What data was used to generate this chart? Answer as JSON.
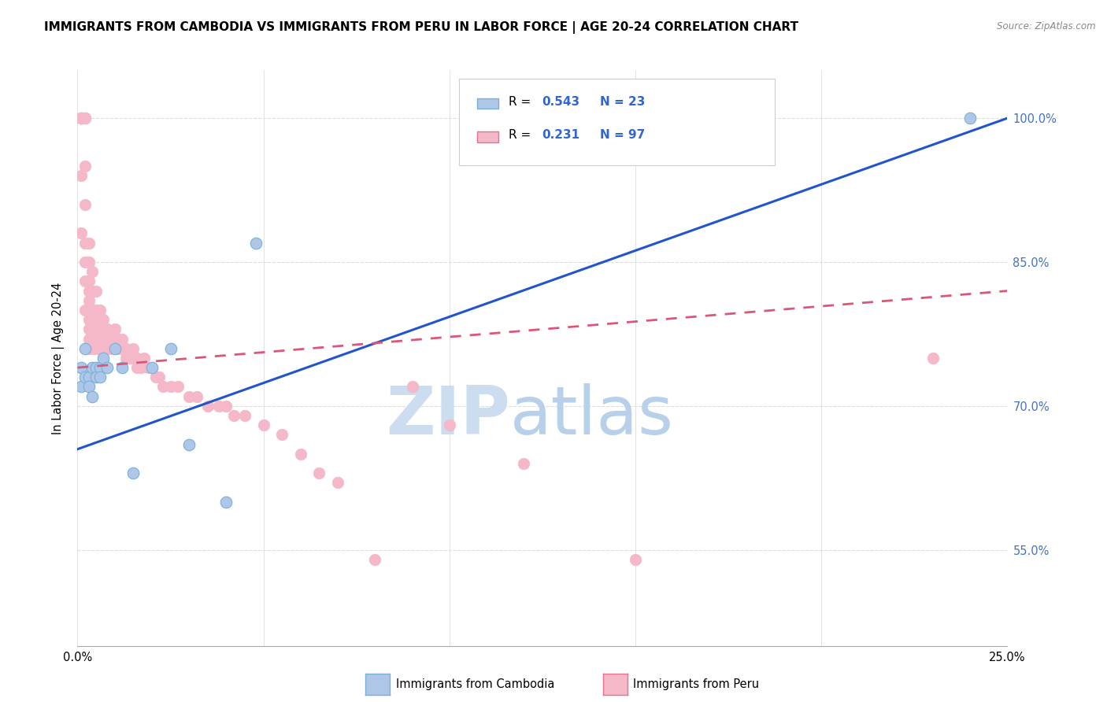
{
  "title": "IMMIGRANTS FROM CAMBODIA VS IMMIGRANTS FROM PERU IN LABOR FORCE | AGE 20-24 CORRELATION CHART",
  "source_text": "Source: ZipAtlas.com",
  "ylabel": "In Labor Force | Age 20-24",
  "xlim": [
    0.0,
    0.25
  ],
  "ylim": [
    0.45,
    1.05
  ],
  "xtick_positions": [
    0.0,
    0.05,
    0.1,
    0.15,
    0.2,
    0.25
  ],
  "xticklabels": [
    "0.0%",
    "",
    "",
    "",
    "",
    "25.0%"
  ],
  "yticks": [
    0.55,
    0.7,
    0.85,
    1.0
  ],
  "yticklabels": [
    "55.0%",
    "70.0%",
    "85.0%",
    "100.0%"
  ],
  "ytick_color": "#4472c4",
  "R_cambodia": 0.543,
  "N_cambodia": 23,
  "R_peru": 0.231,
  "N_peru": 97,
  "cambodia_color": "#aec6e8",
  "cambodia_edge_color": "#7bafd4",
  "peru_color": "#f4b8c8",
  "peru_edge_color": "#e87090",
  "trend_cambodia_color": "#2255cc",
  "trend_peru_color": "#dd5577",
  "watermark_zip_color": "#ccddef",
  "watermark_atlas_color": "#b8d0ea",
  "background_color": "#ffffff",
  "grid_color": "#dddddd",
  "legend_R_color": "#3366cc",
  "legend_N_color": "#3366cc",
  "cambodia_scatter_x": [
    0.001,
    0.001,
    0.002,
    0.002,
    0.003,
    0.003,
    0.004,
    0.004,
    0.005,
    0.005,
    0.006,
    0.006,
    0.007,
    0.008,
    0.01,
    0.012,
    0.015,
    0.02,
    0.025,
    0.03,
    0.04,
    0.048,
    0.24
  ],
  "cambodia_scatter_y": [
    0.74,
    0.72,
    0.76,
    0.73,
    0.73,
    0.72,
    0.74,
    0.71,
    0.74,
    0.73,
    0.74,
    0.73,
    0.75,
    0.74,
    0.76,
    0.74,
    0.63,
    0.74,
    0.76,
    0.66,
    0.6,
    0.87,
    1.0
  ],
  "peru_scatter_x": [
    0.001,
    0.001,
    0.001,
    0.001,
    0.001,
    0.001,
    0.001,
    0.001,
    0.001,
    0.001,
    0.002,
    0.002,
    0.002,
    0.002,
    0.002,
    0.002,
    0.002,
    0.002,
    0.002,
    0.002,
    0.003,
    0.003,
    0.003,
    0.003,
    0.003,
    0.003,
    0.003,
    0.003,
    0.003,
    0.003,
    0.004,
    0.004,
    0.004,
    0.004,
    0.004,
    0.004,
    0.004,
    0.005,
    0.005,
    0.005,
    0.005,
    0.005,
    0.005,
    0.006,
    0.006,
    0.006,
    0.006,
    0.006,
    0.007,
    0.007,
    0.007,
    0.007,
    0.008,
    0.008,
    0.008,
    0.009,
    0.009,
    0.01,
    0.01,
    0.011,
    0.011,
    0.012,
    0.012,
    0.013,
    0.013,
    0.014,
    0.015,
    0.015,
    0.016,
    0.016,
    0.017,
    0.018,
    0.019,
    0.02,
    0.021,
    0.022,
    0.023,
    0.025,
    0.027,
    0.03,
    0.032,
    0.035,
    0.038,
    0.04,
    0.042,
    0.045,
    0.05,
    0.055,
    0.06,
    0.065,
    0.07,
    0.08,
    0.09,
    0.1,
    0.12,
    0.15,
    0.23
  ],
  "peru_scatter_y": [
    1.0,
    1.0,
    1.0,
    1.0,
    1.0,
    1.0,
    1.0,
    1.0,
    0.94,
    0.88,
    1.0,
    1.0,
    1.0,
    1.0,
    0.95,
    0.91,
    0.87,
    0.85,
    0.83,
    0.8,
    0.87,
    0.85,
    0.83,
    0.82,
    0.81,
    0.8,
    0.79,
    0.78,
    0.77,
    0.76,
    0.84,
    0.82,
    0.8,
    0.79,
    0.78,
    0.77,
    0.76,
    0.82,
    0.8,
    0.79,
    0.78,
    0.77,
    0.76,
    0.8,
    0.79,
    0.78,
    0.77,
    0.76,
    0.79,
    0.78,
    0.77,
    0.76,
    0.78,
    0.77,
    0.76,
    0.77,
    0.76,
    0.78,
    0.77,
    0.77,
    0.76,
    0.77,
    0.76,
    0.76,
    0.75,
    0.75,
    0.76,
    0.75,
    0.75,
    0.74,
    0.74,
    0.75,
    0.74,
    0.74,
    0.73,
    0.73,
    0.72,
    0.72,
    0.72,
    0.71,
    0.71,
    0.7,
    0.7,
    0.7,
    0.69,
    0.69,
    0.68,
    0.67,
    0.65,
    0.63,
    0.62,
    0.54,
    0.72,
    0.68,
    0.64,
    0.54,
    0.75
  ],
  "trend_cambodia_x0": 0.0,
  "trend_cambodia_y0": 0.655,
  "trend_cambodia_x1": 0.25,
  "trend_cambodia_y1": 1.0,
  "trend_peru_x0": 0.0,
  "trend_peru_y0": 0.74,
  "trend_peru_x1": 0.25,
  "trend_peru_y1": 0.82
}
